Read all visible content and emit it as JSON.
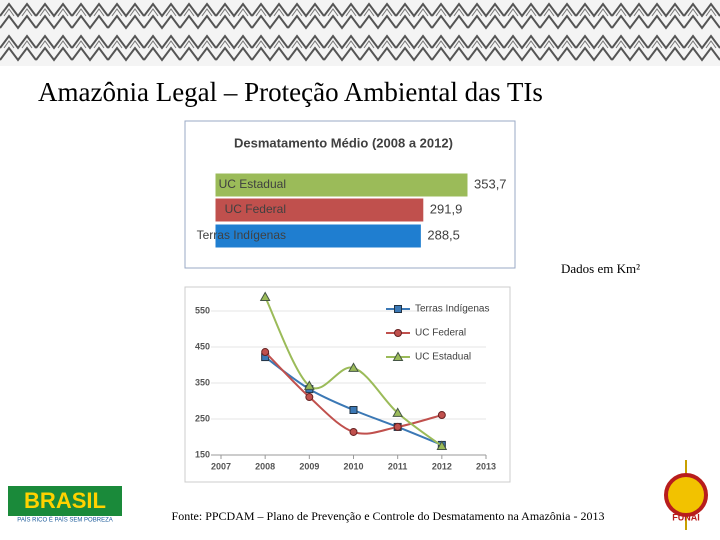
{
  "title": "Amazônia Legal – Proteção Ambiental das TIs",
  "note": "Dados em Km²",
  "source": "Fonte: PPCDAM – Plano de Prevenção e Controle do Desmatamento na Amazônia - 2013",
  "logos": {
    "left": "BRASIL",
    "left_tagline": "PAÍS RICO É PAÍS SEM POBREZA",
    "right": "FUNAI"
  },
  "chart_data": [
    {
      "type": "hbar",
      "title": "Desmatamento Médio (2008 a 2012)",
      "categories": [
        "UC Estadual",
        "UC Federal",
        "Terras Indígenas"
      ],
      "values": [
        353.7,
        291.9,
        288.5
      ],
      "value_labels": [
        "353,7",
        "291,9",
        "288,5"
      ],
      "colors": [
        "#9bbb59",
        "#c0504d",
        "#1f7ed0"
      ]
    },
    {
      "type": "line",
      "x": [
        2008,
        2009,
        2010,
        2011,
        2012
      ],
      "xlim": [
        2007,
        2013
      ],
      "xticks": [
        2007,
        2008,
        2009,
        2010,
        2011,
        2012,
        2013
      ],
      "ylim": [
        150,
        600
      ],
      "yticks": [
        150,
        250,
        350,
        450,
        550
      ],
      "legend": "top-right",
      "series": [
        {
          "name": "Terras Indígenas",
          "color": "#3b78b5",
          "marker": "square",
          "values": [
            422,
            333,
            275,
            228,
            178
          ]
        },
        {
          "name": "UC Federal",
          "color": "#c0504d",
          "marker": "circle",
          "values": [
            436,
            311,
            214,
            228,
            261
          ]
        },
        {
          "name": "UC Estadual",
          "color": "#9bbb59",
          "marker": "triangle",
          "values": [
            589,
            342,
            392,
            267,
            175
          ]
        }
      ]
    }
  ]
}
